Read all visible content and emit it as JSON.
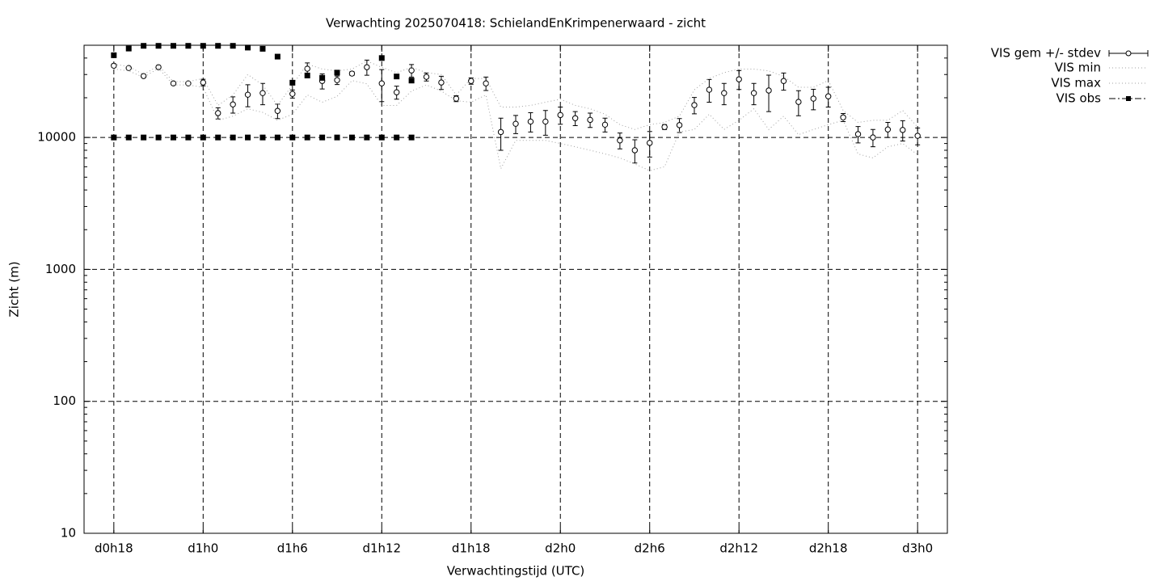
{
  "chart_data": {
    "type": "errorbar-line",
    "title": "Verwachting 2025070418: SchielandEnKrimpenerwaard - zicht",
    "x_label": "Verwachtingstijd (UTC)",
    "y_label": "Zicht (m)",
    "xlim": [
      16,
      74
    ],
    "xticks": [
      {
        "value": 18,
        "label": "d0h18"
      },
      {
        "value": 24,
        "label": "d1h0"
      },
      {
        "value": 30,
        "label": "d1h6"
      },
      {
        "value": 36,
        "label": "d1h12"
      },
      {
        "value": 42,
        "label": "d1h18"
      },
      {
        "value": 48,
        "label": "d2h0"
      },
      {
        "value": 54,
        "label": "d2h6"
      },
      {
        "value": 60,
        "label": "d2h12"
      },
      {
        "value": 66,
        "label": "d2h18"
      },
      {
        "value": 72,
        "label": "d3h0"
      }
    ],
    "ylim": [
      10,
      50000
    ],
    "yticks": [
      10,
      100,
      1000,
      10000
    ],
    "y_log": true,
    "grid": true,
    "x": [
      18,
      19,
      20,
      21,
      22,
      23,
      24,
      25,
      26,
      27,
      28,
      29,
      30,
      31,
      32,
      33,
      34,
      35,
      36,
      37,
      38,
      39,
      40,
      41,
      42,
      43,
      44,
      45,
      46,
      47,
      48,
      49,
      50,
      51,
      52,
      53,
      54,
      55,
      56,
      57,
      58,
      59,
      60,
      61,
      62,
      63,
      64,
      65,
      66,
      67,
      68,
      69,
      70,
      71,
      72
    ],
    "series": [
      {
        "name": "VIS gem +/- stdev",
        "color": "#000000",
        "values": [
          35000,
          33600,
          29200,
          34100,
          25700,
          25700,
          26100,
          15300,
          17800,
          21100,
          21700,
          15900,
          21400,
          33200,
          26800,
          27200,
          30500,
          34100,
          25700,
          22000,
          32200,
          28800,
          26100,
          19700,
          26800,
          25700,
          11000,
          12700,
          13200,
          13200,
          14800,
          14000,
          13600,
          12500,
          9500,
          8000,
          9100,
          12000,
          12400,
          17600,
          23000,
          21700,
          27600,
          21700,
          22700,
          26800,
          18600,
          19700,
          20500,
          14200,
          10600,
          10000,
          11500,
          11400,
          10300
        ],
        "errors": [
          1000,
          500,
          400,
          300,
          500,
          500,
          1500,
          1500,
          2500,
          4000,
          4000,
          2000,
          1500,
          3500,
          3500,
          2000,
          1000,
          4500,
          7000,
          2500,
          3500,
          2000,
          3000,
          1000,
          1500,
          3000,
          3000,
          2000,
          2200,
          2800,
          2200,
          1700,
          1700,
          1500,
          1300,
          1600,
          2000,
          500,
          1500,
          2500,
          4500,
          4000,
          4500,
          4000,
          7000,
          4000,
          4000,
          3500,
          3500,
          1000,
          1500,
          1500,
          1500,
          2000,
          1500
        ]
      },
      {
        "name": "VIS min",
        "color": "#a0a0a0",
        "values": [
          33000,
          32000,
          28500,
          33500,
          25000,
          25000,
          24000,
          13500,
          14500,
          16500,
          15500,
          13500,
          15000,
          21000,
          18500,
          20500,
          27000,
          25500,
          17500,
          17500,
          22500,
          25000,
          22500,
          19000,
          18500,
          21000,
          5800,
          9500,
          9500,
          9500,
          9000,
          8500,
          8000,
          7500,
          7000,
          6300,
          5600,
          6000,
          11000,
          11500,
          15000,
          11500,
          13500,
          16500,
          11500,
          14500,
          10500,
          11500,
          12500,
          13500,
          7500,
          7000,
          8500,
          9000,
          7400
        ]
      },
      {
        "name": "VIS max",
        "color": "#a0a0a0",
        "values": [
          36000,
          34500,
          30000,
          35000,
          26500,
          26500,
          28000,
          17500,
          21000,
          30000,
          25000,
          17500,
          25000,
          36000,
          33000,
          32000,
          33000,
          38000,
          34000,
          31000,
          34000,
          31000,
          30000,
          21000,
          28000,
          28000,
          17000,
          17000,
          17500,
          18500,
          19500,
          17500,
          16500,
          15000,
          12500,
          11500,
          12500,
          13000,
          14500,
          23000,
          28000,
          31000,
          33000,
          33000,
          32000,
          29000,
          24000,
          24000,
          27000,
          16000,
          13000,
          13500,
          13500,
          16000,
          12000
        ]
      },
      {
        "name": "VIS obs",
        "color": "#000000",
        "x": [
          18,
          19,
          20,
          21,
          22,
          23,
          24,
          25,
          26,
          27,
          28,
          29,
          30,
          31,
          32,
          33,
          36,
          37,
          38,
          18,
          19,
          20,
          21,
          22,
          23,
          24,
          25,
          26,
          27,
          28,
          29,
          30,
          31,
          32,
          33,
          34,
          35,
          36,
          37,
          38
        ],
        "values": [
          42000,
          47200,
          49500,
          49500,
          49500,
          49500,
          49500,
          49500,
          49500,
          48000,
          47000,
          41000,
          26000,
          29500,
          28300,
          31000,
          40000,
          29000,
          27000,
          10000,
          10000,
          10000,
          10000,
          10000,
          10000,
          10000,
          10000,
          10000,
          10000,
          10000,
          10000,
          10000,
          10000,
          10000,
          10000,
          10000,
          10000,
          10000,
          10000,
          10000
        ]
      }
    ]
  }
}
